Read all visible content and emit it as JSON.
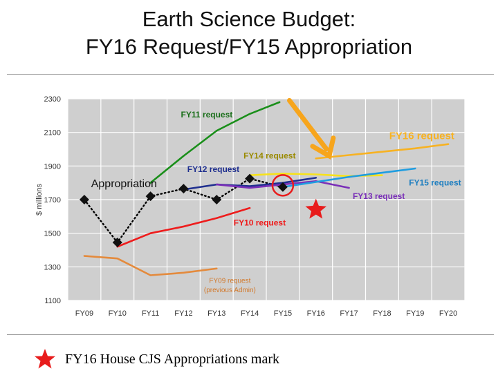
{
  "title_lines": [
    "Earth Science Budget:",
    "FY16 Request/FY15 Appropriation"
  ],
  "footer_label": "FY16 House CJS Appropriations mark",
  "chart_data": {
    "type": "line",
    "ylabel": "$ millions",
    "ylim": [
      1100,
      2300
    ],
    "yticks": [
      1100,
      1300,
      1500,
      1700,
      1900,
      2100,
      2300
    ],
    "categories": [
      "FY09",
      "FY10",
      "FY11",
      "FY12",
      "FY13",
      "FY14",
      "FY15",
      "FY16",
      "FY17",
      "FY18",
      "FY19",
      "FY20"
    ],
    "grid": true,
    "series": [
      {
        "name": "Appropriation",
        "color": "#000000",
        "style": "dotted",
        "marker": "diamond",
        "x": [
          0,
          1,
          2,
          3,
          4,
          5,
          6
        ],
        "values": [
          1700,
          1445,
          1720,
          1765,
          1700,
          1825,
          1775
        ]
      },
      {
        "name": "FY09 request (previous Admin)",
        "color": "#e48a3c",
        "x": [
          0,
          1,
          2,
          3,
          4
        ],
        "values": [
          1365,
          1350,
          1250,
          1265,
          1290
        ]
      },
      {
        "name": "FY10 request",
        "color": "#ee1c1c",
        "x": [
          1,
          2,
          3,
          4,
          5
        ],
        "values": [
          1420,
          1500,
          1540,
          1590,
          1650
        ]
      },
      {
        "name": "FY11 request",
        "color": "#1a8f1a",
        "x": [
          2,
          3,
          4,
          5,
          5.9
        ],
        "values": [
          1800,
          1960,
          2110,
          2210,
          2280
        ]
      },
      {
        "name": "FY12 request",
        "color": "#1f2f8f",
        "x": [
          3,
          4,
          5,
          6,
          7
        ],
        "values": [
          1760,
          1790,
          1780,
          1800,
          1830
        ]
      },
      {
        "name": "FY13 request",
        "color": "#7a2fb8",
        "x": [
          4,
          5,
          6,
          7,
          8
        ],
        "values": [
          1790,
          1770,
          1790,
          1810,
          1770
        ]
      },
      {
        "name": "FY14 request",
        "color": "#f7e21a",
        "x": [
          5,
          6,
          7,
          8,
          9
        ],
        "values": [
          1845,
          1855,
          1850,
          1840,
          1845
        ]
      },
      {
        "name": "FY15 request",
        "color": "#1f9de0",
        "x": [
          6,
          7,
          8,
          9,
          10
        ],
        "values": [
          1775,
          1805,
          1835,
          1860,
          1885
        ]
      },
      {
        "name": "FY16 request",
        "color": "#f7b222",
        "x": [
          7,
          8,
          9,
          10,
          11
        ],
        "values": [
          1945,
          1965,
          1985,
          2005,
          2030
        ]
      }
    ],
    "annotations": [
      {
        "text": "FY11 request",
        "color": "#1a6f1a",
        "xv": 3.7,
        "yv": 2190,
        "size": 12,
        "bold": true
      },
      {
        "text": "FY16 request",
        "color": "#f7b222",
        "xv": 10.2,
        "yv": 2060,
        "size": 15,
        "bold": true
      },
      {
        "text": "FY14 request",
        "color": "#9a8a00",
        "xv": 5.6,
        "yv": 1945,
        "size": 12,
        "bold": true
      },
      {
        "text": "FY12 request",
        "color": "#1f2f8f",
        "xv": 3.9,
        "yv": 1865,
        "size": 12,
        "bold": true
      },
      {
        "text": "Appropriation",
        "color": "#111111",
        "xv": 1.2,
        "yv": 1775,
        "size": 16,
        "bold": false
      },
      {
        "text": "FY15 request",
        "color": "#1f7fc0",
        "xv": 10.6,
        "yv": 1785,
        "size": 12,
        "bold": true
      },
      {
        "text": "FY13 request",
        "color": "#7a2fb8",
        "xv": 8.9,
        "yv": 1705,
        "size": 12,
        "bold": true
      },
      {
        "text": "FY10 request",
        "color": "#ee1c1c",
        "xv": 5.3,
        "yv": 1545,
        "size": 12,
        "bold": true
      },
      {
        "text": "FY09 request",
        "color": "#d2782a",
        "xv": 4.4,
        "yv": 1205,
        "size": 10,
        "bold": false
      },
      {
        "text": "(previous Admin)",
        "color": "#d2782a",
        "xv": 4.4,
        "yv": 1150,
        "size": 10,
        "bold": false
      }
    ],
    "markers": [
      {
        "type": "red-circle",
        "xv": 6,
        "yv": 1785
      },
      {
        "type": "red-star",
        "xv": 7,
        "yv": 1640
      },
      {
        "type": "orange-arrow",
        "from": [
          6.2,
          2290
        ],
        "to": [
          7.4,
          1960
        ]
      }
    ]
  }
}
